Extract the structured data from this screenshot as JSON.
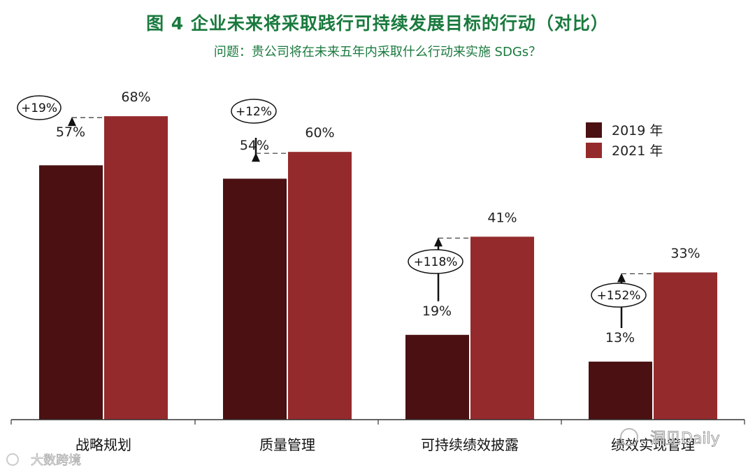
{
  "header": {
    "title": "图 4  企业未来将采取践行可持续发展目标的行动（对比）",
    "subtitle": "问题：贵公司将在未来五年内采取什么行动来实施 SDGs？"
  },
  "colors": {
    "series_2019": "#4a1012",
    "series_2021": "#952a2c",
    "title": "#1a7a3e"
  },
  "watermarks": {
    "right": "洞见Daily",
    "left": "大数跨境"
  },
  "chart_data": {
    "type": "bar",
    "categories": [
      "战略规划",
      "质量管理",
      "可持续绩效披露",
      "绩效实现管理"
    ],
    "series": [
      {
        "name": "2019 年",
        "values": [
          57,
          54,
          19,
          13
        ],
        "labels": [
          "57%",
          "54%",
          "19%",
          "13%"
        ]
      },
      {
        "name": "2021 年",
        "values": [
          68,
          60,
          41,
          33
        ],
        "labels": [
          "68%",
          "60%",
          "41%",
          "33%"
        ]
      }
    ],
    "changes": [
      "+19%",
      "+12%",
      "+118%",
      "+152%"
    ],
    "ylim": [
      0,
      80
    ],
    "legend": "right",
    "grid": false
  }
}
